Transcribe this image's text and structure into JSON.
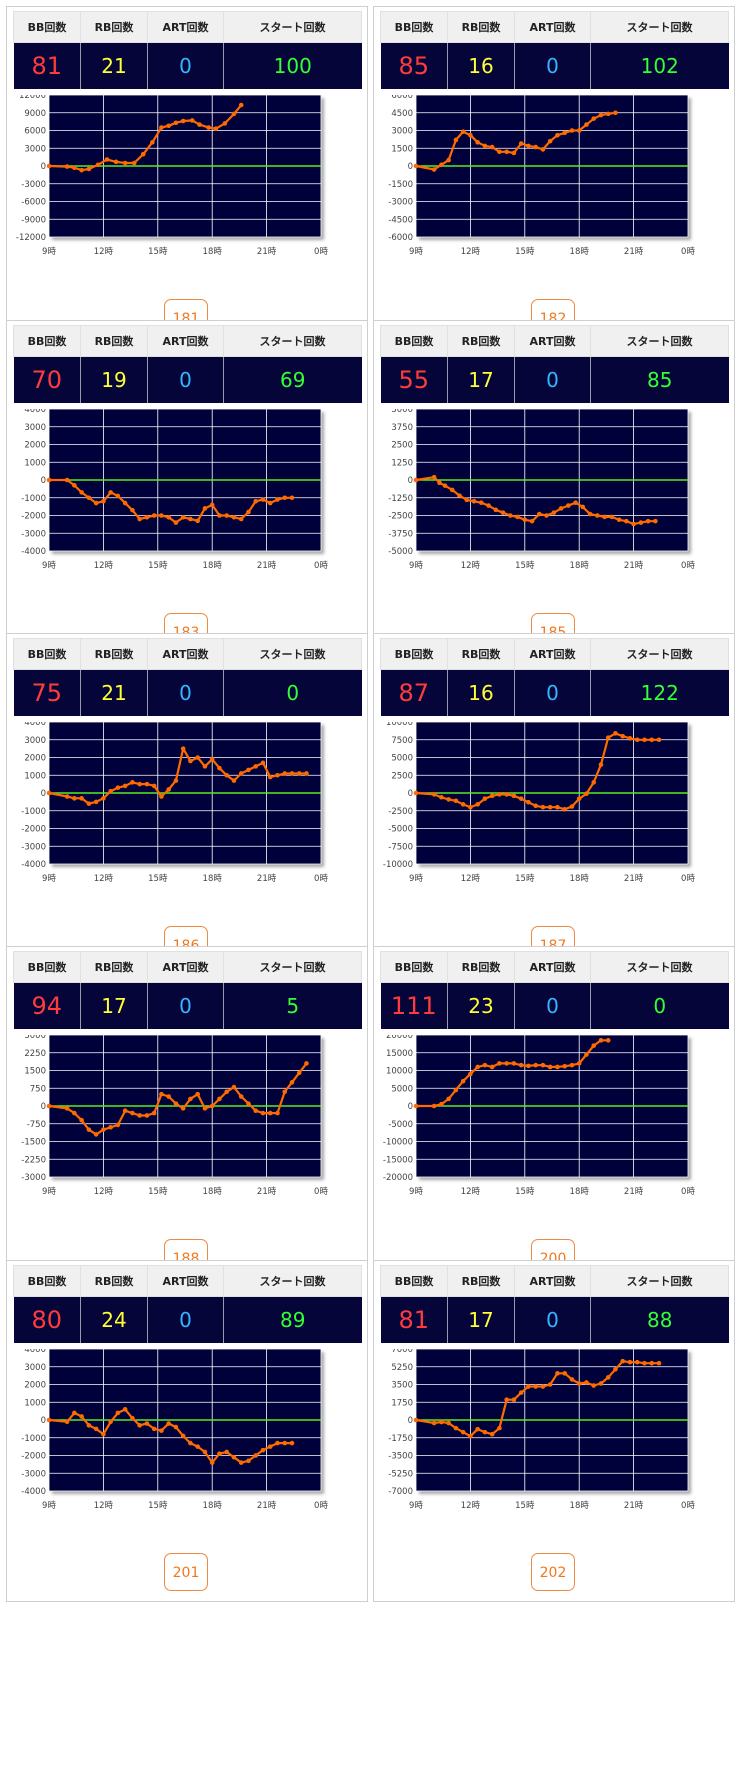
{
  "headers": {
    "bb": "BB回数",
    "rb": "RB回数",
    "art": "ART回数",
    "start": "スタート回数"
  },
  "x_tick_labels": [
    "9時",
    "12時",
    "15時",
    "18時",
    "21時",
    "0時"
  ],
  "colors": {
    "plot_bg": "#05053a",
    "line": "#ff6a00",
    "zero": "#55ee22",
    "grid": "#ffffff"
  },
  "units": [
    {
      "name": "181",
      "bb": "81",
      "rb": "21",
      "art": "0",
      "start": "100",
      "y_ticks": [
        "12000",
        "9000",
        "6000",
        "3000",
        "0",
        "-3000",
        "-6000",
        "-9000",
        "-12000"
      ]
    },
    {
      "name": "182",
      "bb": "85",
      "rb": "16",
      "art": "0",
      "start": "102",
      "y_ticks": [
        "6000",
        "4500",
        "3000",
        "1500",
        "0",
        "-1500",
        "-3000",
        "-4500",
        "-6000"
      ]
    },
    {
      "name": "183",
      "bb": "70",
      "rb": "19",
      "art": "0",
      "start": "69",
      "y_ticks": [
        "4000",
        "3000",
        "2000",
        "1000",
        "0",
        "-1000",
        "-2000",
        "-3000",
        "-4000"
      ]
    },
    {
      "name": "185",
      "bb": "55",
      "rb": "17",
      "art": "0",
      "start": "85",
      "y_ticks": [
        "5000",
        "3750",
        "2500",
        "1250",
        "0",
        "-1250",
        "-2500",
        "-3750",
        "-5000"
      ]
    },
    {
      "name": "186",
      "bb": "75",
      "rb": "21",
      "art": "0",
      "start": "0",
      "y_ticks": [
        "4000",
        "3000",
        "2000",
        "1000",
        "0",
        "-1000",
        "-2000",
        "-3000",
        "-4000"
      ]
    },
    {
      "name": "187",
      "bb": "87",
      "rb": "16",
      "art": "0",
      "start": "122",
      "y_ticks": [
        "10000",
        "7500",
        "5000",
        "2500",
        "0",
        "-2500",
        "-5000",
        "-7500",
        "-10000"
      ]
    },
    {
      "name": "188",
      "bb": "94",
      "rb": "17",
      "art": "0",
      "start": "5",
      "y_ticks": [
        "3000",
        "2250",
        "1500",
        "750",
        "0",
        "-750",
        "-1500",
        "-2250",
        "-3000"
      ]
    },
    {
      "name": "200",
      "bb": "111",
      "rb": "23",
      "art": "0",
      "start": "0",
      "y_ticks": [
        "20000",
        "15000",
        "10000",
        "5000",
        "0",
        "-5000",
        "-10000",
        "-15000",
        "-20000"
      ]
    },
    {
      "name": "201",
      "bb": "80",
      "rb": "24",
      "art": "0",
      "start": "89",
      "y_ticks": [
        "4000",
        "3000",
        "2000",
        "1000",
        "0",
        "-1000",
        "-2000",
        "-3000",
        "-4000"
      ]
    },
    {
      "name": "202",
      "bb": "81",
      "rb": "17",
      "art": "0",
      "start": "88",
      "y_ticks": [
        "7000",
        "5250",
        "3500",
        "1750",
        "0",
        "-1750",
        "-3500",
        "-5250",
        "-7000"
      ]
    }
  ],
  "chart_data": [
    {
      "type": "line",
      "title": "181",
      "xlabel": "",
      "ylabel": "",
      "xlim": [
        9,
        24
      ],
      "ylim": [
        -12000,
        12000
      ],
      "x": [
        9.0,
        10.0,
        10.4,
        10.8,
        11.2,
        11.7,
        12.2,
        12.7,
        13.2,
        13.7,
        14.2,
        14.7,
        15.2,
        15.6,
        16.0,
        16.4,
        16.9,
        17.3,
        17.8,
        18.2,
        18.7,
        19.2,
        19.6
      ],
      "y": [
        0,
        -100,
        -300,
        -700,
        -500,
        200,
        1100,
        700,
        500,
        500,
        2000,
        4000,
        6500,
        6800,
        7300,
        7600,
        7700,
        7000,
        6500,
        6300,
        7200,
        8800,
        10300
      ]
    },
    {
      "type": "line",
      "title": "182",
      "xlabel": "",
      "ylabel": "",
      "xlim": [
        9,
        24
      ],
      "ylim": [
        -6000,
        6000
      ],
      "x": [
        9.0,
        10.0,
        10.4,
        10.8,
        11.2,
        11.6,
        12.0,
        12.4,
        12.8,
        13.2,
        13.6,
        14.0,
        14.4,
        14.8,
        15.2,
        15.6,
        16.0,
        16.4,
        16.8,
        17.2,
        17.6,
        18.0,
        18.4,
        18.8,
        19.2,
        19.6,
        20.0
      ],
      "y": [
        0,
        -300,
        100,
        500,
        2200,
        2900,
        2600,
        2000,
        1700,
        1600,
        1200,
        1200,
        1100,
        1900,
        1700,
        1600,
        1400,
        2100,
        2600,
        2800,
        3000,
        3000,
        3500,
        4000,
        4300,
        4400,
        4500
      ]
    },
    {
      "type": "line",
      "title": "183",
      "xlabel": "",
      "ylabel": "",
      "xlim": [
        9,
        24
      ],
      "ylim": [
        -4000,
        4000
      ],
      "x": [
        9.0,
        10.0,
        10.4,
        10.8,
        11.2,
        11.6,
        12.0,
        12.4,
        12.8,
        13.2,
        13.6,
        14.0,
        14.4,
        14.8,
        15.2,
        15.6,
        16.0,
        16.4,
        16.8,
        17.2,
        17.6,
        18.0,
        18.4,
        18.8,
        19.2,
        19.6,
        20.0,
        20.4,
        20.8,
        21.2,
        21.6,
        22.0,
        22.4
      ],
      "y": [
        0,
        0,
        -300,
        -700,
        -1000,
        -1300,
        -1200,
        -700,
        -900,
        -1300,
        -1700,
        -2200,
        -2100,
        -2000,
        -2000,
        -2100,
        -2400,
        -2100,
        -2200,
        -2300,
        -1600,
        -1400,
        -2000,
        -2000,
        -2100,
        -2200,
        -1800,
        -1200,
        -1100,
        -1300,
        -1100,
        -1000,
        -1000
      ]
    },
    {
      "type": "line",
      "title": "185",
      "xlabel": "",
      "ylabel": "",
      "xlim": [
        9,
        24
      ],
      "ylim": [
        -5000,
        5000
      ],
      "x": [
        9.0,
        10.0,
        10.3,
        10.6,
        11.0,
        11.4,
        11.8,
        12.2,
        12.6,
        13.0,
        13.4,
        13.8,
        14.2,
        14.6,
        15.0,
        15.4,
        15.8,
        16.2,
        16.6,
        17.0,
        17.4,
        17.8,
        18.2,
        18.6,
        19.0,
        19.4,
        19.8,
        20.2,
        20.6,
        21.0,
        21.4,
        21.8,
        22.2
      ],
      "y": [
        0,
        200,
        -200,
        -400,
        -700,
        -1100,
        -1400,
        -1500,
        -1600,
        -1800,
        -2100,
        -2300,
        -2500,
        -2600,
        -2800,
        -2900,
        -2400,
        -2500,
        -2300,
        -2000,
        -1800,
        -1600,
        -1900,
        -2400,
        -2500,
        -2600,
        -2600,
        -2800,
        -2900,
        -3100,
        -3000,
        -2900,
        -2900
      ]
    },
    {
      "type": "line",
      "title": "186",
      "xlabel": "",
      "ylabel": "",
      "xlim": [
        9,
        24
      ],
      "ylim": [
        -4000,
        4000
      ],
      "x": [
        9.0,
        10.0,
        10.4,
        10.8,
        11.2,
        11.6,
        12.0,
        12.4,
        12.8,
        13.2,
        13.6,
        14.0,
        14.4,
        14.8,
        15.2,
        15.6,
        16.0,
        16.4,
        16.8,
        17.2,
        17.6,
        18.0,
        18.4,
        18.8,
        19.2,
        19.6,
        20.0,
        20.4,
        20.8,
        21.2,
        21.6,
        22.0,
        22.4,
        22.8,
        23.2
      ],
      "y": [
        0,
        -200,
        -300,
        -300,
        -600,
        -500,
        -300,
        100,
        300,
        400,
        600,
        500,
        500,
        400,
        -200,
        200,
        700,
        2500,
        1800,
        2000,
        1500,
        1900,
        1400,
        1000,
        700,
        1100,
        1300,
        1500,
        1700,
        900,
        1000,
        1100,
        1100,
        1100,
        1100
      ]
    },
    {
      "type": "line",
      "title": "187",
      "xlabel": "",
      "ylabel": "",
      "xlim": [
        9,
        24
      ],
      "ylim": [
        -10000,
        10000
      ],
      "x": [
        9.0,
        10.0,
        10.4,
        10.8,
        11.2,
        11.6,
        12.0,
        12.4,
        12.8,
        13.2,
        13.6,
        14.0,
        14.4,
        14.8,
        15.2,
        15.6,
        16.0,
        16.4,
        16.8,
        17.2,
        17.6,
        18.0,
        18.4,
        18.8,
        19.2,
        19.6,
        20.0,
        20.4,
        20.8,
        21.2,
        21.6,
        22.0,
        22.4
      ],
      "y": [
        0,
        -200,
        -600,
        -900,
        -1100,
        -1600,
        -2000,
        -1600,
        -800,
        -400,
        -200,
        -200,
        -400,
        -800,
        -1300,
        -1800,
        -2000,
        -2000,
        -2000,
        -2300,
        -1900,
        -800,
        -100,
        1500,
        4000,
        7800,
        8400,
        8000,
        7700,
        7500,
        7500,
        7500,
        7500
      ]
    },
    {
      "type": "line",
      "title": "188",
      "xlabel": "",
      "ylabel": "",
      "xlim": [
        9,
        24
      ],
      "ylim": [
        -3000,
        3000
      ],
      "x": [
        9.0,
        10.0,
        10.4,
        10.8,
        11.2,
        11.6,
        12.0,
        12.4,
        12.8,
        13.2,
        13.6,
        14.0,
        14.4,
        14.8,
        15.2,
        15.6,
        16.0,
        16.4,
        16.8,
        17.2,
        17.6,
        18.0,
        18.4,
        18.8,
        19.2,
        19.6,
        20.0,
        20.4,
        20.8,
        21.2,
        21.6,
        22.0,
        22.4,
        22.8,
        23.2
      ],
      "y": [
        0,
        -100,
        -300,
        -600,
        -1000,
        -1200,
        -1000,
        -900,
        -800,
        -200,
        -300,
        -400,
        -400,
        -300,
        500,
        400,
        100,
        -100,
        300,
        500,
        -100,
        0,
        300,
        600,
        800,
        400,
        100,
        -200,
        -300,
        -300,
        -300,
        600,
        1000,
        1400,
        1800
      ]
    },
    {
      "type": "line",
      "title": "200",
      "xlabel": "",
      "ylabel": "",
      "xlim": [
        9,
        24
      ],
      "ylim": [
        -20000,
        20000
      ],
      "x": [
        9.0,
        10.0,
        10.4,
        10.8,
        11.2,
        11.6,
        12.0,
        12.4,
        12.8,
        13.2,
        13.6,
        14.0,
        14.4,
        14.8,
        15.2,
        15.6,
        16.0,
        16.4,
        16.8,
        17.2,
        17.6,
        18.0,
        18.4,
        18.8,
        19.2,
        19.6
      ],
      "y": [
        0,
        0,
        500,
        2000,
        4500,
        7000,
        9000,
        11000,
        11500,
        11000,
        12000,
        12000,
        12000,
        11500,
        11300,
        11500,
        11500,
        11000,
        11000,
        11200,
        11500,
        12000,
        14500,
        17000,
        18500,
        18500
      ]
    },
    {
      "type": "line",
      "title": "201",
      "xlabel": "",
      "ylabel": "",
      "xlim": [
        9,
        24
      ],
      "ylim": [
        -4000,
        4000
      ],
      "x": [
        9.0,
        10.0,
        10.4,
        10.8,
        11.2,
        11.6,
        12.0,
        12.4,
        12.8,
        13.2,
        13.6,
        14.0,
        14.4,
        14.8,
        15.2,
        15.6,
        16.0,
        16.4,
        16.8,
        17.2,
        17.6,
        18.0,
        18.4,
        18.8,
        19.2,
        19.6,
        20.0,
        20.4,
        20.8,
        21.2,
        21.6,
        22.0,
        22.4
      ],
      "y": [
        0,
        -100,
        400,
        200,
        -300,
        -500,
        -800,
        -100,
        400,
        600,
        100,
        -300,
        -200,
        -500,
        -600,
        -200,
        -400,
        -900,
        -1300,
        -1500,
        -1800,
        -2400,
        -1900,
        -1800,
        -2100,
        -2400,
        -2300,
        -2000,
        -1700,
        -1500,
        -1300,
        -1300,
        -1300
      ]
    },
    {
      "type": "line",
      "title": "202",
      "xlabel": "",
      "ylabel": "",
      "xlim": [
        9,
        24
      ],
      "ylim": [
        -7000,
        7000
      ],
      "x": [
        9.0,
        10.0,
        10.4,
        10.8,
        11.2,
        11.6,
        12.0,
        12.4,
        12.8,
        13.2,
        13.6,
        14.0,
        14.4,
        14.8,
        15.2,
        15.6,
        16.0,
        16.4,
        16.8,
        17.2,
        17.6,
        18.0,
        18.4,
        18.8,
        19.2,
        19.6,
        20.0,
        20.4,
        20.8,
        21.2,
        21.6,
        22.0,
        22.4
      ],
      "y": [
        0,
        -300,
        -200,
        -300,
        -800,
        -1200,
        -1600,
        -900,
        -1200,
        -1400,
        -800,
        2000,
        2000,
        2700,
        3300,
        3300,
        3300,
        3500,
        4600,
        4600,
        4000,
        3600,
        3700,
        3400,
        3600,
        4200,
        5000,
        5800,
        5700,
        5700,
        5600,
        5600,
        5600
      ]
    }
  ]
}
